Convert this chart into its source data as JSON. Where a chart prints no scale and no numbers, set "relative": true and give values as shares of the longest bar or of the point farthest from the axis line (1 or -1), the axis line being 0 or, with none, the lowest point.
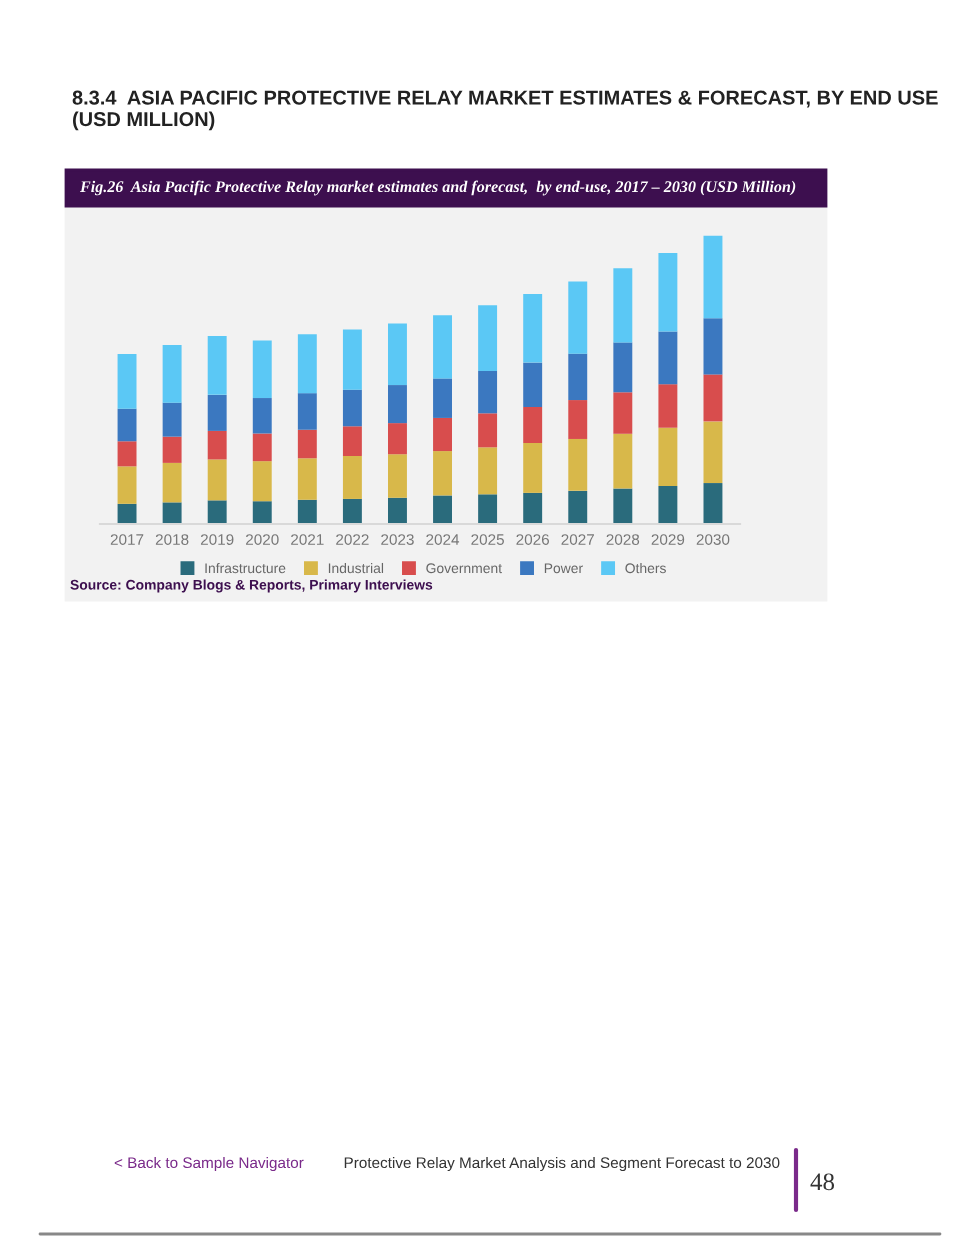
{
  "chart_data": {
    "type": "bar",
    "stacked": true,
    "relative": true,
    "title": "8.3.4  ASIA PACIFIC PROTECTIVE RELAY MARKET ESTIMATES & FORECAST, BY END USE (USD MILLION)",
    "subtitle": "Fig.26  Asia Pacific Protective Relay market estimates and forecast,  by end-use, 2017 – 2030 (USD Million)",
    "categories": [
      "2017",
      "2018",
      "2019",
      "2020",
      "2021",
      "2022",
      "2023",
      "2024",
      "2025",
      "2026",
      "2027",
      "2028",
      "2029",
      "2030"
    ],
    "series": [
      {
        "name": "Infrastructure",
        "color": "#2a6b7c",
        "values": [
          0.07,
          0.075,
          0.082,
          0.079,
          0.084,
          0.087,
          0.091,
          0.099,
          0.103,
          0.108,
          0.115,
          0.123,
          0.132,
          0.142
        ]
      },
      {
        "name": "Industrial",
        "color": "#d8b84a",
        "values": [
          0.13,
          0.137,
          0.142,
          0.139,
          0.144,
          0.149,
          0.151,
          0.154,
          0.163,
          0.173,
          0.18,
          0.19,
          0.202,
          0.214
        ]
      },
      {
        "name": "Government",
        "color": "#d84d4d",
        "values": [
          0.087,
          0.091,
          0.099,
          0.096,
          0.099,
          0.103,
          0.108,
          0.115,
          0.118,
          0.125,
          0.135,
          0.144,
          0.151,
          0.163
        ]
      },
      {
        "name": "Power",
        "color": "#3b78c0",
        "values": [
          0.113,
          0.118,
          0.125,
          0.123,
          0.127,
          0.127,
          0.132,
          0.137,
          0.147,
          0.154,
          0.161,
          0.173,
          0.183,
          0.195
        ]
      },
      {
        "name": "Others",
        "color": "#5bc8f5",
        "values": [
          0.19,
          0.2,
          0.204,
          0.2,
          0.204,
          0.209,
          0.214,
          0.219,
          0.228,
          0.238,
          0.25,
          0.257,
          0.272,
          0.286
        ]
      }
    ],
    "legend": "bottom",
    "grid": false,
    "annotations": [
      "Source: Company Blogs & Reports, Primary Interviews",
      "< Back to Sample Navigator",
      "Protective Relay Market Analysis and Segment Forecast to 2030",
      "48"
    ]
  }
}
